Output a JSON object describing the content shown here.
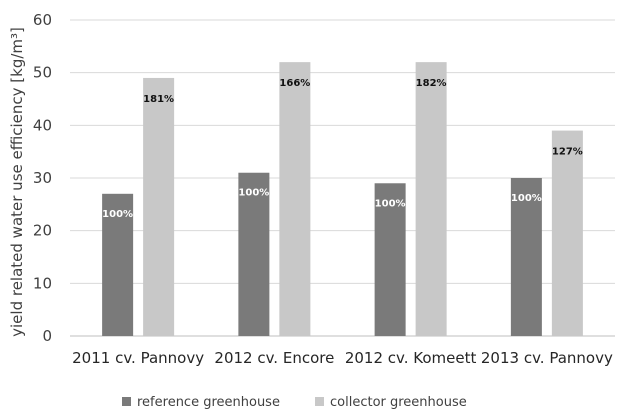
{
  "chart_data": {
    "type": "bar",
    "ylabel": "yield related water use efficiency [kg/m³]",
    "ylim": [
      0,
      60
    ],
    "yticks": [
      0,
      10,
      20,
      30,
      40,
      50,
      60
    ],
    "grid": true,
    "legend_position": "bottom",
    "categories": [
      "2011 cv. Pannovy",
      "2012 cv. Encore",
      "2012 cv. Komeett",
      "2013 cv. Pannovy"
    ],
    "series": [
      {
        "name": "reference greenhouse",
        "color": "#7a7a7a",
        "values": [
          27,
          31,
          29,
          30
        ],
        "labels": [
          "100%",
          "100%",
          "100%",
          "100%"
        ]
      },
      {
        "name": "collector greenhouse",
        "color": "#c8c8c8",
        "values": [
          49,
          52,
          52,
          39
        ],
        "labels": [
          "181%",
          "166%",
          "182%",
          "127%"
        ]
      }
    ]
  }
}
